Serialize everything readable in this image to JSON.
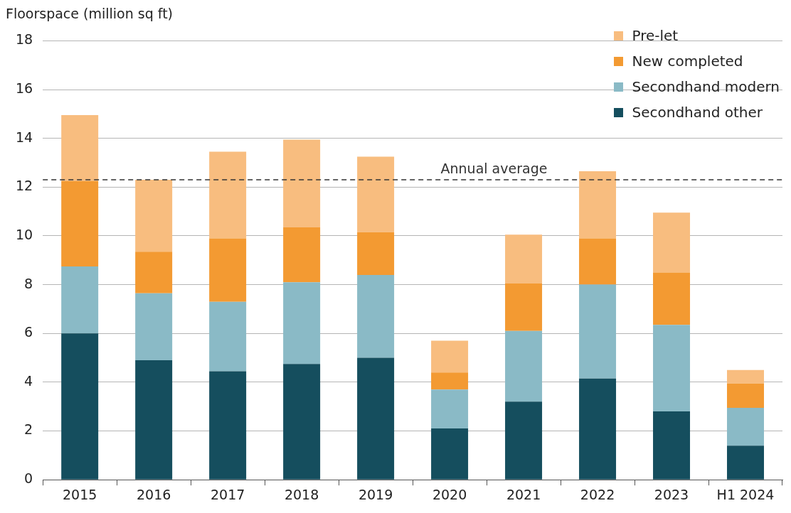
{
  "chart_data": {
    "type": "bar",
    "ylabel": "Floorspace (million sq ft)",
    "categories": [
      "2015",
      "2016",
      "2017",
      "2018",
      "2019",
      "2020",
      "2021",
      "2022",
      "2023",
      "H1 2024"
    ],
    "stacked": true,
    "series": [
      {
        "name": "Secondhand other",
        "color": "#154e5e",
        "values": [
          6.0,
          4.9,
          4.45,
          4.75,
          5.0,
          2.1,
          3.2,
          4.15,
          2.8,
          1.4
        ]
      },
      {
        "name": "Secondhand modern",
        "color": "#8abac6",
        "values": [
          2.75,
          2.75,
          2.85,
          3.35,
          3.4,
          1.6,
          2.9,
          3.85,
          3.55,
          1.55
        ]
      },
      {
        "name": "New completed",
        "color": "#f39a32",
        "values": [
          3.5,
          1.7,
          2.6,
          2.25,
          1.75,
          0.7,
          1.95,
          1.9,
          2.15,
          1.0
        ]
      },
      {
        "name": "Pre-let",
        "color": "#f8bd7f",
        "values": [
          2.7,
          2.95,
          3.55,
          3.6,
          3.1,
          1.3,
          2.0,
          2.75,
          2.45,
          0.55
        ]
      }
    ],
    "ylim": [
      0,
      18
    ],
    "yticks": [
      0,
      2,
      4,
      6,
      8,
      10,
      12,
      14,
      16,
      18
    ],
    "grid": "y",
    "legend": "top right",
    "ref_lines": [
      {
        "axis": "y",
        "value": 12.3,
        "label": "Annual average",
        "color": "#333333",
        "line_style": "dashed"
      }
    ]
  }
}
